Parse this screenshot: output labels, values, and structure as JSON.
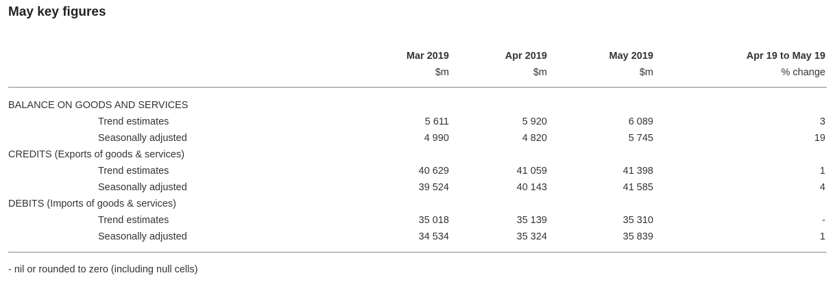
{
  "title": "May key figures",
  "table": {
    "columns": [
      {
        "period": "Mar 2019",
        "unit": "$m"
      },
      {
        "period": "Apr 2019",
        "unit": "$m"
      },
      {
        "period": "May 2019",
        "unit": "$m"
      },
      {
        "period": "Apr 19 to May 19",
        "unit": "% change"
      }
    ],
    "sections": [
      {
        "label": "BALANCE ON GOODS AND SERVICES",
        "rows": [
          {
            "label": "Trend estimates",
            "cells": [
              "5 611",
              "5 920",
              "6 089",
              "3"
            ]
          },
          {
            "label": "Seasonally adjusted",
            "cells": [
              "4 990",
              "4 820",
              "5 745",
              "19"
            ]
          }
        ]
      },
      {
        "label": "CREDITS (Exports of goods & services)",
        "rows": [
          {
            "label": "Trend estimates",
            "cells": [
              "40 629",
              "41 059",
              "41 398",
              "1"
            ]
          },
          {
            "label": "Seasonally adjusted",
            "cells": [
              "39 524",
              "40 143",
              "41 585",
              "4"
            ]
          }
        ]
      },
      {
        "label": "DEBITS (Imports of goods & services)",
        "rows": [
          {
            "label": "Trend estimates",
            "cells": [
              "35 018",
              "35 139",
              "35 310",
              "-"
            ]
          },
          {
            "label": "Seasonally adjusted",
            "cells": [
              "34 534",
              "35 324",
              "35 839",
              "1"
            ]
          }
        ]
      }
    ]
  },
  "footnote": "- nil or rounded to zero (including null cells)"
}
